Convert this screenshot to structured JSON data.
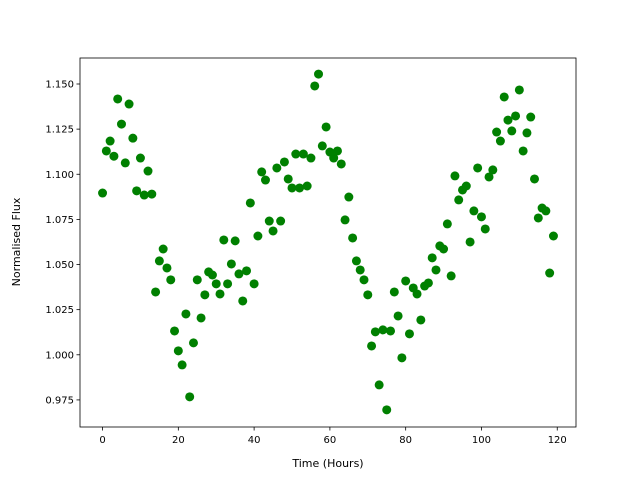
{
  "chart_data": {
    "type": "scatter",
    "color": "#008000",
    "x_label": "Time (Hours)",
    "y_label": "Normalised Flux",
    "x": [
      0,
      1,
      2,
      3,
      4,
      5,
      6,
      7,
      8,
      9,
      10,
      11,
      12,
      13,
      14,
      15,
      16,
      17,
      18,
      19,
      20,
      21,
      22,
      23,
      24,
      25,
      26,
      27,
      28,
      29,
      30,
      31,
      32,
      33,
      34,
      35,
      36,
      37,
      38,
      39,
      40,
      41,
      42,
      43,
      44,
      45,
      46,
      47,
      48,
      49,
      50,
      51,
      52,
      53,
      54,
      55,
      56,
      57,
      58,
      59,
      60,
      61,
      62,
      63,
      64,
      65,
      66,
      67,
      68,
      69,
      70,
      71,
      72,
      73,
      74,
      75,
      76,
      77,
      78,
      79,
      80,
      81,
      82,
      83,
      84,
      85,
      86,
      87,
      88,
      89,
      90,
      91,
      92,
      93,
      94,
      95,
      96,
      97,
      98,
      99,
      100,
      101,
      102,
      103,
      104,
      105,
      106,
      107,
      108,
      109,
      110,
      111,
      112,
      113,
      114,
      115,
      116,
      117,
      118,
      119
    ],
    "values": [
      1.0896,
      1.1129,
      1.1184,
      1.11,
      1.1417,
      1.1278,
      1.1063,
      1.1389,
      1.12,
      1.0908,
      1.109,
      1.0885,
      1.1018,
      1.089,
      1.0348,
      1.052,
      1.0586,
      1.0481,
      1.0415,
      1.0132,
      1.0022,
      0.9944,
      1.0226,
      0.9767,
      1.0066,
      1.0415,
      1.0204,
      1.0332,
      1.0459,
      1.0442,
      1.0393,
      1.0337,
      1.0636,
      1.0393,
      1.0503,
      1.0631,
      1.0448,
      1.0298,
      1.0465,
      1.0841,
      1.0393,
      1.0658,
      1.1013,
      1.0968,
      1.0741,
      1.0686,
      1.1035,
      1.0741,
      1.1068,
      1.0974,
      1.0924,
      1.1112,
      1.0924,
      1.1112,
      1.0935,
      1.109,
      1.1489,
      1.1555,
      1.1157,
      1.1262,
      1.1123,
      1.109,
      1.1129,
      1.1057,
      1.0747,
      1.0874,
      1.0647,
      1.052,
      1.047,
      1.0415,
      1.0332,
      1.0049,
      1.0127,
      0.9833,
      1.0138,
      0.9695,
      1.0132,
      1.0348,
      1.0215,
      0.9983,
      1.0409,
      1.0116,
      1.037,
      1.0337,
      1.0193,
      1.0381,
      1.0398,
      1.0537,
      1.047,
      1.0603,
      1.0586,
      1.0725,
      1.0437,
      1.0991,
      1.0858,
      1.0913,
      1.0935,
      1.0625,
      1.0797,
      1.1035,
      1.0764,
      1.0697,
      1.0985,
      1.1024,
      1.1234,
      1.1184,
      1.1428,
      1.13,
      1.124,
      1.1323,
      1.1467,
      1.1129,
      1.1229,
      1.1317,
      1.0974,
      1.0758,
      1.0813,
      1.0797,
      1.0453,
      1.0658
    ],
    "xlim": [
      -5.95,
      124.95
    ],
    "ylim": [
      0.96,
      1.1644
    ],
    "xticks": [
      0,
      20,
      40,
      60,
      80,
      100,
      120
    ],
    "yticks": [
      0.975,
      {
        "value": 1.0,
        "label": "1.000"
      },
      1.025,
      {
        "value": 1.05,
        "label": "1.050"
      },
      1.075,
      {
        "value": 1.1,
        "label": "1.100"
      },
      1.125,
      {
        "value": 1.15,
        "label": "1.150"
      }
    ]
  }
}
